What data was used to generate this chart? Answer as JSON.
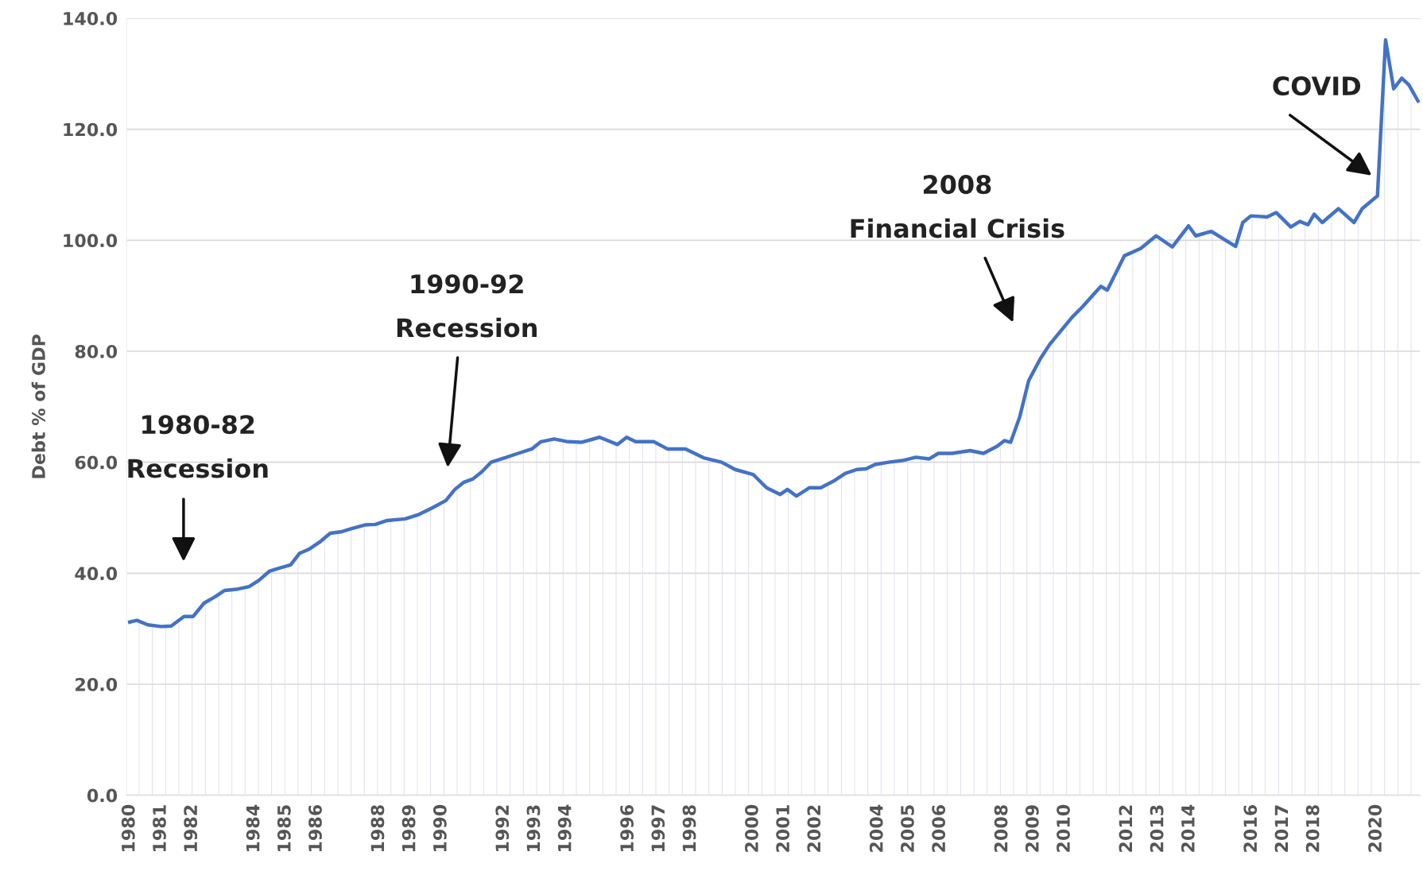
{
  "chart_data": {
    "type": "area",
    "ylabel": "Debt % of GDP",
    "x": [
      1980.0,
      1980.23,
      1980.58,
      1981.01,
      1981.33,
      1981.74,
      1982.03,
      1982.38,
      1982.75,
      1983.04,
      1983.42,
      1983.83,
      1984.14,
      1984.49,
      1984.84,
      1985.16,
      1985.45,
      1985.74,
      1986.09,
      1986.43,
      1986.81,
      1987.1,
      1987.54,
      1987.88,
      1988.26,
      1988.84,
      1989.28,
      1989.71,
      1990.14,
      1990.43,
      1990.72,
      1991.01,
      1991.3,
      1991.59,
      1992.03,
      1992.46,
      1992.9,
      1993.19,
      1993.62,
      1994.06,
      1994.49,
      1995.07,
      1995.65,
      1995.94,
      1996.23,
      1996.81,
      1997.25,
      1997.83,
      1998.41,
      1998.99,
      1999.42,
      2000.0,
      2000.43,
      2000.87,
      2001.1,
      2001.39,
      2001.8,
      2002.17,
      2002.61,
      2002.96,
      2003.33,
      2003.62,
      2003.91,
      2004.35,
      2004.78,
      2005.22,
      2005.65,
      2005.94,
      2006.38,
      2006.96,
      2007.39,
      2007.83,
      2008.06,
      2008.26,
      2008.55,
      2008.84,
      2009.22,
      2009.51,
      2009.86,
      2010.23,
      2010.58,
      2010.96,
      2011.16,
      2011.36,
      2011.91,
      2012.43,
      2012.93,
      2013.45,
      2013.97,
      2014.2,
      2014.7,
      2015.48,
      2015.71,
      2015.97,
      2016.49,
      2016.78,
      2017.25,
      2017.54,
      2017.8,
      2018.0,
      2018.26,
      2018.78,
      2019.28,
      2019.54,
      2020.03,
      2020.29,
      2020.55,
      2020.81,
      2021.04,
      2021.33
    ],
    "series": [
      {
        "color": "#4472c4",
        "values": [
          31.2,
          31.5,
          30.7,
          30.4,
          30.5,
          32.2,
          32.2,
          34.6,
          35.8,
          36.9,
          37.1,
          37.6,
          38.7,
          40.4,
          41.0,
          41.5,
          43.6,
          44.3,
          45.6,
          47.2,
          47.5,
          48.0,
          48.7,
          48.8,
          49.5,
          49.8,
          50.6,
          51.8,
          53.1,
          55.1,
          56.4,
          57.0,
          58.3,
          60.0,
          60.8,
          61.6,
          62.4,
          63.7,
          64.2,
          63.7,
          63.6,
          64.5,
          63.2,
          64.5,
          63.7,
          63.7,
          62.4,
          62.4,
          60.8,
          60.0,
          58.7,
          57.8,
          55.4,
          54.2,
          55.1,
          53.9,
          55.4,
          55.4,
          56.7,
          58.0,
          58.7,
          58.8,
          59.6,
          60.0,
          60.3,
          60.9,
          60.6,
          61.6,
          61.6,
          62.1,
          61.6,
          62.9,
          63.9,
          63.6,
          68.1,
          74.7,
          78.7,
          81.2,
          83.6,
          86.1,
          88.1,
          90.5,
          91.7,
          91.0,
          97.2,
          98.5,
          100.8,
          98.8,
          102.6,
          100.8,
          101.6,
          98.9,
          103.2,
          104.4,
          104.2,
          105.0,
          102.4,
          103.4,
          102.8,
          104.7,
          103.2,
          105.7,
          103.2,
          105.7,
          108.0,
          136.1,
          127.3,
          129.2,
          128.0,
          125.1
        ]
      }
    ],
    "xlim": [
      1979.9,
      2021.4
    ],
    "xticks": [
      1980,
      1981,
      1982,
      1984,
      1985,
      1986,
      1988,
      1989,
      1990,
      1992,
      1993,
      1994,
      1996,
      1997,
      1998,
      2000,
      2001,
      2002,
      2004,
      2005,
      2006,
      2008,
      2009,
      2010,
      2012,
      2013,
      2014,
      2016,
      2017,
      2018,
      2020
    ],
    "ylim": [
      0,
      140
    ],
    "yticks": [
      {
        "value": 0,
        "label": "0.0"
      },
      {
        "value": 20,
        "label": "20.0"
      },
      {
        "value": 40,
        "label": "40.0"
      },
      {
        "value": 60,
        "label": "60.0"
      },
      {
        "value": 80,
        "label": "80.0"
      },
      {
        "value": 100,
        "label": "100.0"
      },
      {
        "value": 120,
        "label": "120.0"
      },
      {
        "value": 140,
        "label": "140.0"
      }
    ],
    "grid": "y",
    "legend": false,
    "annotations": [
      "1980-82\nRecession",
      "1990-92\nRecession",
      "2008\nFinancial Crisis",
      "COVID"
    ]
  }
}
